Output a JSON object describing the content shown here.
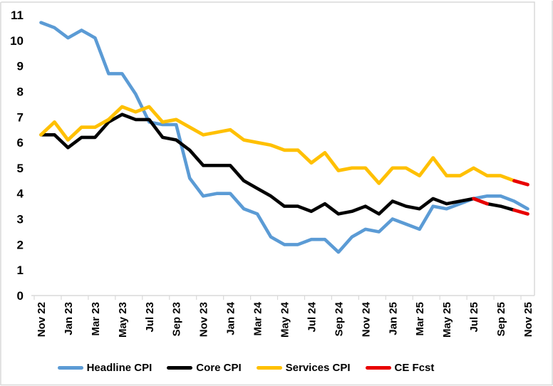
{
  "chart_data": {
    "type": "line",
    "title": "",
    "xlabel": "",
    "ylabel": "",
    "grid": false,
    "legend_position": "bottom",
    "background": "#FFFFFF",
    "axis_color": "#D9D9D9",
    "text_color": "#000000",
    "ylim": [
      0,
      11
    ],
    "yticks": [
      0,
      1,
      2,
      3,
      4,
      5,
      6,
      7,
      8,
      9,
      10,
      11
    ],
    "x_categories": [
      "Nov 22",
      "Dec 22",
      "Jan 23",
      "Feb 23",
      "Mar 23",
      "Apr 23",
      "May 23",
      "Jun 23",
      "Jul 23",
      "Aug 23",
      "Sep 23",
      "Oct 23",
      "Nov 23",
      "Dec 23",
      "Jan 24",
      "Feb 24",
      "Mar 24",
      "Apr 24",
      "May 24",
      "Jun 24",
      "Jul 24",
      "Aug 24",
      "Sep 24",
      "Oct 24",
      "Nov 24",
      "Dec 24",
      "Jan 25",
      "Feb 25",
      "Mar 25",
      "Apr 25",
      "May 25",
      "Jun 25",
      "Jul 25",
      "Aug 25",
      "Sep 25",
      "Oct 25",
      "Nov 25"
    ],
    "xtick_labels": [
      "Nov 22",
      "Jan 23",
      "Mar 23",
      "May 23",
      "Jul 23",
      "Sep 23",
      "Nov 23",
      "Jan 24",
      "Mar 24",
      "May 24",
      "Jul 24",
      "Sep 24",
      "Nov 24",
      "Jan 25",
      "Mar 25",
      "May 25",
      "Jul 25",
      "Sep 25",
      "Nov 25"
    ],
    "series": [
      {
        "name": "Headline CPI",
        "color": "#5B9BD5",
        "values": [
          10.7,
          10.5,
          10.1,
          10.4,
          10.1,
          8.7,
          8.7,
          7.9,
          6.8,
          6.7,
          6.7,
          4.6,
          3.9,
          4.0,
          4.0,
          3.4,
          3.2,
          2.3,
          2.0,
          2.0,
          2.2,
          2.2,
          1.7,
          2.3,
          2.6,
          2.5,
          3.0,
          2.8,
          2.6,
          3.5,
          3.4,
          3.6,
          3.8,
          3.9,
          3.9,
          3.7,
          3.4
        ]
      },
      {
        "name": "Core CPI",
        "color": "#000000",
        "values": [
          6.3,
          6.3,
          5.8,
          6.2,
          6.2,
          6.8,
          7.1,
          6.9,
          6.9,
          6.2,
          6.1,
          5.7,
          5.1,
          5.1,
          5.1,
          4.5,
          4.2,
          3.9,
          3.5,
          3.5,
          3.3,
          3.6,
          3.2,
          3.3,
          3.5,
          3.2,
          3.7,
          3.5,
          3.4,
          3.8,
          3.6,
          3.7,
          3.8,
          3.6,
          3.5,
          3.35,
          null
        ]
      },
      {
        "name": "Services CPI",
        "color": "#FFC000",
        "values": [
          6.3,
          6.8,
          6.1,
          6.6,
          6.6,
          6.9,
          7.4,
          7.2,
          7.4,
          6.8,
          6.9,
          6.6,
          6.3,
          6.4,
          6.5,
          6.1,
          6.0,
          5.9,
          5.7,
          5.7,
          5.2,
          5.6,
          4.9,
          5.0,
          5.0,
          4.4,
          5.0,
          5.0,
          4.7,
          5.4,
          4.7,
          4.7,
          5.0,
          4.7,
          4.7,
          4.5,
          null
        ]
      },
      {
        "name": "CE Fcst",
        "color": "#E80000",
        "segments": [
          [
            [
              "Jul 25",
              3.8
            ],
            [
              "Aug 25",
              3.6
            ]
          ],
          [
            [
              "Oct 25",
              3.35
            ],
            [
              "Nov 25",
              3.2
            ]
          ],
          [
            [
              "Oct 25",
              4.5
            ],
            [
              "Nov 25",
              4.35
            ]
          ]
        ]
      }
    ]
  }
}
